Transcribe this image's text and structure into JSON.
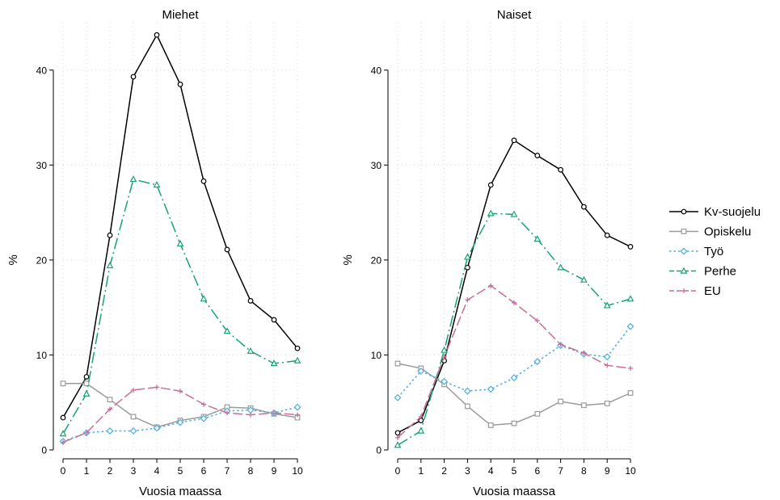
{
  "chart_data": [
    {
      "type": "line",
      "title": "Miehet",
      "xlabel": "Vuosia maassa",
      "ylabel": "%",
      "x": [
        0,
        1,
        2,
        3,
        4,
        5,
        6,
        7,
        8,
        9,
        10
      ],
      "xticks": [
        "0",
        "1",
        "2",
        "3",
        "4",
        "5",
        "6",
        "7",
        "8",
        "9",
        "10"
      ],
      "yticks": [
        "0",
        "10",
        "20",
        "30",
        "40"
      ],
      "ylim": [
        0,
        45
      ],
      "grid": true,
      "series": [
        {
          "name": "Kv-suojelu",
          "values": [
            3.4,
            7.7,
            22.6,
            39.3,
            43.7,
            38.5,
            28.3,
            21.1,
            15.7,
            13.7,
            10.7
          ]
        },
        {
          "name": "Opiskelu",
          "values": [
            7.0,
            7.0,
            5.3,
            3.5,
            2.4,
            3.1,
            3.5,
            4.5,
            4.4,
            3.8,
            3.4
          ]
        },
        {
          "name": "Työ",
          "values": [
            0.9,
            1.8,
            2.0,
            2.0,
            2.3,
            2.9,
            3.3,
            4.1,
            4.2,
            3.9,
            4.5
          ]
        },
        {
          "name": "Perhe",
          "values": [
            1.7,
            5.9,
            19.4,
            28.5,
            27.9,
            21.7,
            15.9,
            12.5,
            10.4,
            9.1,
            9.4
          ]
        },
        {
          "name": "EU",
          "values": [
            0.8,
            1.8,
            4.3,
            6.3,
            6.6,
            6.2,
            4.8,
            3.9,
            3.7,
            3.9,
            3.7
          ]
        }
      ]
    },
    {
      "type": "line",
      "title": "Naiset",
      "xlabel": "Vuosia maassa",
      "ylabel": "%",
      "x": [
        0,
        1,
        2,
        3,
        4,
        5,
        6,
        7,
        8,
        9,
        10
      ],
      "xticks": [
        "0",
        "1",
        "2",
        "3",
        "4",
        "5",
        "6",
        "7",
        "8",
        "9",
        "10"
      ],
      "yticks": [
        "0",
        "10",
        "20",
        "30",
        "40"
      ],
      "ylim": [
        0,
        45
      ],
      "grid": true,
      "series": [
        {
          "name": "Kv-suojelu",
          "values": [
            1.8,
            3.1,
            9.4,
            19.2,
            27.9,
            32.6,
            31.0,
            29.5,
            25.6,
            22.6,
            21.4
          ]
        },
        {
          "name": "Opiskelu",
          "values": [
            9.1,
            8.6,
            6.9,
            4.6,
            2.6,
            2.8,
            3.8,
            5.1,
            4.7,
            4.9,
            6.0
          ]
        },
        {
          "name": "Työ",
          "values": [
            5.5,
            8.3,
            7.2,
            6.2,
            6.4,
            7.6,
            9.3,
            11.0,
            10.1,
            9.8,
            13.0
          ]
        },
        {
          "name": "Perhe",
          "values": [
            0.5,
            2.0,
            10.5,
            20.3,
            24.9,
            24.8,
            22.2,
            19.2,
            17.9,
            15.2,
            15.9
          ]
        },
        {
          "name": "EU",
          "values": [
            1.3,
            3.5,
            9.8,
            15.8,
            17.3,
            15.5,
            13.6,
            11.1,
            10.2,
            8.9,
            8.6
          ]
        }
      ]
    }
  ],
  "legend": {
    "placement": "right",
    "entries": [
      "Kv-suojelu",
      "Opiskelu",
      "Työ",
      "Perhe",
      "EU"
    ]
  },
  "style": {
    "Kv-suojelu": {
      "color": "#000000",
      "marker": "circle",
      "dash": "solid"
    },
    "Opiskelu": {
      "color": "#9b9b9b",
      "marker": "square",
      "dash": "solid"
    },
    "Työ": {
      "color": "#4aaee2",
      "marker": "diamond",
      "dash": "dotted"
    },
    "Perhe": {
      "color": "#17a373",
      "marker": "triangle",
      "dash": "longdash-dot"
    },
    "EU": {
      "color": "#c86f9b",
      "marker": "plus",
      "dash": "longdash"
    }
  }
}
